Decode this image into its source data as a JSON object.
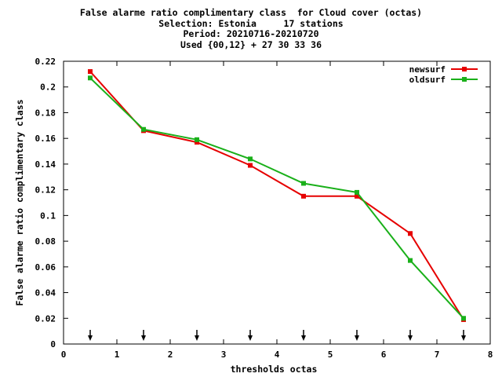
{
  "title_lines": [
    "False alarme ratio complimentary class  for Cloud cover (octas)",
    "Selection: Estonia     17 stations",
    "Period: 20210716-20210720",
    "Used {00,12} + 27 30 33 36"
  ],
  "chart_data": {
    "type": "line",
    "title": "False alarme ratio complimentary class  for Cloud cover (octas)",
    "xlabel": "thresholds octas",
    "ylabel": "False alarme ratio complimentary class",
    "xlim": [
      0,
      8
    ],
    "ylim": [
      0,
      0.22
    ],
    "xticks": [
      "0",
      "1",
      "2",
      "3",
      "4",
      "5",
      "6",
      "7",
      "8"
    ],
    "yticks": [
      "0",
      "0.02",
      "0.04",
      "0.06",
      "0.08",
      "0.1",
      "0.12",
      "0.14",
      "0.16",
      "0.18",
      "0.2",
      "0.22"
    ],
    "grid": false,
    "legend_position": "top-right",
    "x": [
      0.5,
      1.5,
      2.5,
      3.5,
      4.5,
      5.5,
      6.5,
      7.5
    ],
    "series": [
      {
        "name": "newsurf",
        "color": "#e60000",
        "values": [
          0.212,
          0.166,
          0.157,
          0.139,
          0.115,
          0.115,
          0.086,
          0.019
        ]
      },
      {
        "name": "oldsurf",
        "color": "#1ab01a",
        "values": [
          0.207,
          0.167,
          0.159,
          0.144,
          0.125,
          0.118,
          0.065,
          0.02
        ]
      }
    ],
    "arrow_markers_x": [
      0.5,
      1.5,
      2.5,
      3.5,
      4.5,
      5.5,
      6.5,
      7.5
    ]
  }
}
